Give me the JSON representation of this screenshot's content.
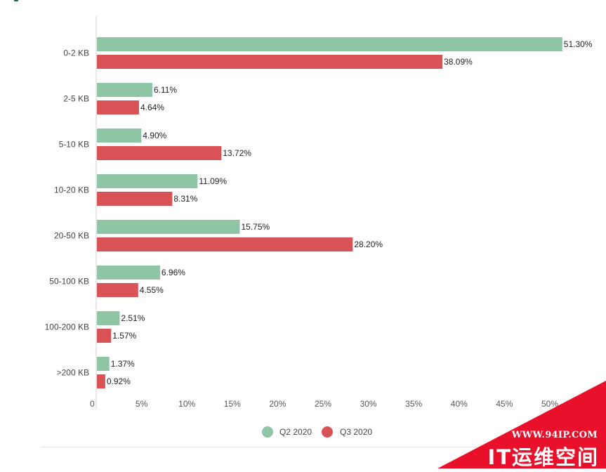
{
  "chart_data": {
    "type": "bar",
    "orientation": "horizontal",
    "categories": [
      "0-2 KB",
      "2-5 KB",
      "5-10 KB",
      "10-20 KB",
      "20-50 KB",
      "50-100 KB",
      "100-200 KB",
      ">200 KB"
    ],
    "series": [
      {
        "name": "Q2 2020",
        "color": "#8fc4a4",
        "values": [
          51.3,
          6.11,
          4.9,
          11.09,
          15.75,
          6.96,
          2.51,
          1.37
        ],
        "labels": [
          "51.30%",
          "6.11%",
          "4.90%",
          "11.09%",
          "15.75%",
          "6.96%",
          "2.51%",
          "1.37%"
        ]
      },
      {
        "name": "Q3 2020",
        "color": "#d95356",
        "values": [
          38.09,
          4.64,
          13.72,
          8.31,
          28.2,
          4.55,
          1.57,
          0.92
        ],
        "labels": [
          "38.09%",
          "4.64%",
          "13.72%",
          "8.31%",
          "28.20%",
          "4.55%",
          "1.57%",
          "0.92%"
        ]
      }
    ],
    "xlim": [
      0,
      52
    ],
    "xticks": [
      0,
      5,
      10,
      15,
      20,
      25,
      30,
      35,
      40,
      45,
      50
    ],
    "xtick_labels": [
      "0",
      "5%",
      "10%",
      "15%",
      "20%",
      "25%",
      "30%",
      "35%",
      "40%",
      "45%",
      "50%"
    ],
    "legend_position": "bottom-center",
    "grid": false
  },
  "watermark": {
    "url": "WWW.94IP.COM",
    "brand": "IT运维空间",
    "color": "#e8102a"
  }
}
